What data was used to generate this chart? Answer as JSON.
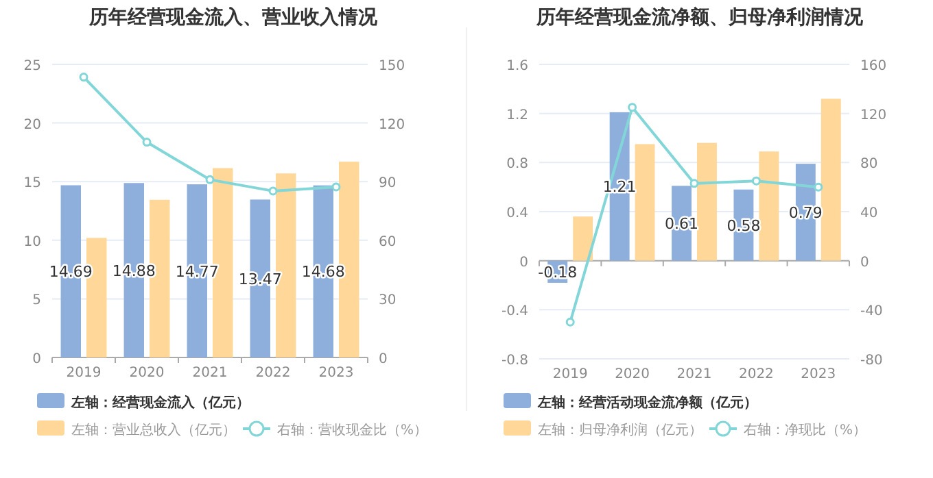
{
  "chart_data": [
    {
      "type": "bar",
      "title": "历年经营现金流入、营业收入情况",
      "categories": [
        "2019",
        "2020",
        "2021",
        "2022",
        "2023"
      ],
      "series": [
        {
          "name": "左轴：经营现金流入（亿元）",
          "color": "#8eaedb",
          "values": [
            14.69,
            14.88,
            14.77,
            13.47,
            14.68
          ],
          "value_labels": [
            "14.69",
            "14.88",
            "14.77",
            "13.47",
            "14.68"
          ]
        },
        {
          "name": "左轴：营业总收入（亿元）",
          "color": "#ffd899",
          "values": [
            10.2,
            13.45,
            16.15,
            15.7,
            16.7
          ]
        },
        {
          "name": "右轴：营收现金比（%）",
          "type": "line",
          "axis": "y2",
          "color": "#82d6d8",
          "values": [
            143.5,
            110.2,
            91.0,
            85.2,
            87.3
          ]
        }
      ],
      "ylim": [
        0,
        25
      ],
      "yticks": [
        0,
        5,
        10,
        15,
        20,
        25
      ],
      "y2lim": [
        0,
        150
      ],
      "y2ticks": [
        0,
        30,
        60,
        90,
        120,
        150
      ],
      "grid": "y",
      "legend": "bottom",
      "marker": "circle"
    },
    {
      "type": "bar",
      "title": "历年经营现金流净额、归母净利润情况",
      "categories": [
        "2019",
        "2020",
        "2021",
        "2022",
        "2023"
      ],
      "series": [
        {
          "name": "左轴：经营活动现金流净额（亿元）",
          "color": "#8eaedb",
          "values": [
            -0.18,
            1.21,
            0.61,
            0.58,
            0.79
          ],
          "value_labels": [
            "-0.18",
            "1.21",
            "0.61",
            "0.58",
            "0.79"
          ]
        },
        {
          "name": "左轴：归母净利润（亿元）",
          "color": "#ffd899",
          "values": [
            0.36,
            0.95,
            0.96,
            0.89,
            1.32
          ]
        },
        {
          "name": "右轴：净现比（%）",
          "type": "line",
          "axis": "y2",
          "color": "#82d6d8",
          "values": [
            -50,
            125,
            63,
            65,
            60
          ]
        }
      ],
      "ylim": [
        -0.8,
        1.6
      ],
      "yticks": [
        -0.8,
        -0.4,
        0,
        0.4,
        0.8,
        1.2,
        1.6
      ],
      "y2lim": [
        -80,
        160
      ],
      "y2ticks": [
        -80,
        -40,
        0,
        40,
        80,
        120,
        160
      ],
      "grid": "y",
      "legend": "bottom",
      "marker": "circle"
    }
  ]
}
